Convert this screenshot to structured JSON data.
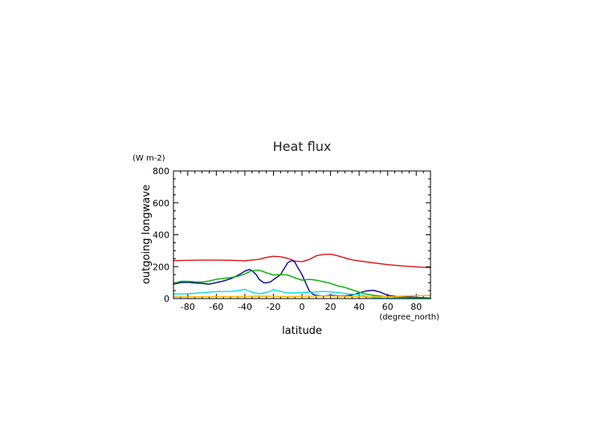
{
  "chart_data": {
    "type": "line",
    "title": "Heat flux",
    "xlabel": "latitude",
    "ylabel": "outgoing longwave",
    "x_units": "(degree_north)",
    "y_units": "(W m-2)",
    "xlim": [
      -90,
      90
    ],
    "ylim": [
      0,
      800
    ],
    "x_ticks": [
      "-80",
      "-60",
      "-40",
      "-20",
      "0",
      "20",
      "40",
      "60",
      "80"
    ],
    "y_ticks": [
      "0",
      "200",
      "400",
      "600",
      "800"
    ],
    "grid": false,
    "legend": "none",
    "series": [
      {
        "color": "#e01010",
        "x": [
          -90,
          -80,
          -70,
          -60,
          -50,
          -40,
          -30,
          -25,
          -20,
          -15,
          -10,
          -5,
          0,
          5,
          10,
          15,
          20,
          25,
          30,
          35,
          40,
          50,
          60,
          70,
          80,
          90
        ],
        "values": [
          238,
          240,
          241,
          241,
          240,
          237,
          246,
          258,
          265,
          262,
          252,
          235,
          232,
          245,
          268,
          276,
          278,
          268,
          255,
          243,
          236,
          224,
          213,
          205,
          198,
          193
        ]
      },
      {
        "color": "#0000a0",
        "x": [
          -90,
          -85,
          -80,
          -75,
          -70,
          -65,
          -60,
          -55,
          -50,
          -45,
          -40,
          -37,
          -35,
          -32,
          -30,
          -27,
          -25,
          -22,
          -20,
          -15,
          -10,
          -7,
          -5,
          -3,
          0,
          3,
          5,
          8,
          10,
          15,
          20,
          25,
          30,
          35,
          40,
          45,
          50,
          55,
          60,
          65,
          70,
          75,
          80,
          85,
          90
        ],
        "values": [
          90,
          100,
          102,
          98,
          95,
          90,
          100,
          110,
          125,
          145,
          172,
          182,
          175,
          150,
          120,
          100,
          98,
          105,
          118,
          150,
          225,
          240,
          228,
          195,
          150,
          90,
          50,
          25,
          20,
          15,
          20,
          18,
          17,
          22,
          35,
          48,
          52,
          40,
          20,
          15,
          12,
          10,
          8,
          5,
          3
        ]
      },
      {
        "color": "#00b000",
        "x": [
          -90,
          -85,
          -80,
          -75,
          -70,
          -65,
          -60,
          -55,
          -50,
          -45,
          -40,
          -35,
          -30,
          -25,
          -20,
          -15,
          -10,
          -5,
          0,
          5,
          10,
          15,
          20,
          25,
          30,
          35,
          40,
          45,
          50,
          55,
          60,
          65,
          70,
          75,
          80,
          85,
          90
        ],
        "values": [
          95,
          108,
          108,
          105,
          103,
          110,
          120,
          127,
          132,
          140,
          155,
          175,
          178,
          162,
          148,
          150,
          148,
          130,
          115,
          120,
          115,
          105,
          95,
          80,
          70,
          55,
          40,
          28,
          20,
          15,
          12,
          10,
          8,
          6,
          5,
          3,
          2
        ]
      },
      {
        "color": "#00e0e0",
        "x": [
          -90,
          -80,
          -70,
          -60,
          -50,
          -45,
          -40,
          -35,
          -30,
          -25,
          -20,
          -15,
          -10,
          -5,
          0,
          5,
          10,
          15,
          20,
          25,
          30,
          35,
          40,
          45,
          50,
          55,
          60,
          70,
          80,
          90
        ],
        "values": [
          28,
          30,
          36,
          44,
          45,
          50,
          58,
          40,
          30,
          38,
          55,
          45,
          35,
          35,
          38,
          40,
          42,
          45,
          42,
          38,
          32,
          28,
          25,
          15,
          5,
          2,
          0,
          -2,
          -5,
          -8
        ]
      },
      {
        "color": "#ffb000",
        "x": [
          -90,
          -80,
          -70,
          -60,
          -50,
          -40,
          -30,
          -20,
          -10,
          0,
          10,
          20,
          30,
          40,
          50,
          60,
          70,
          80,
          90
        ],
        "values": [
          10,
          11,
          12,
          13,
          13,
          14,
          15,
          14,
          13,
          14,
          16,
          16,
          15,
          12,
          10,
          12,
          15,
          18,
          20
        ]
      }
    ]
  }
}
